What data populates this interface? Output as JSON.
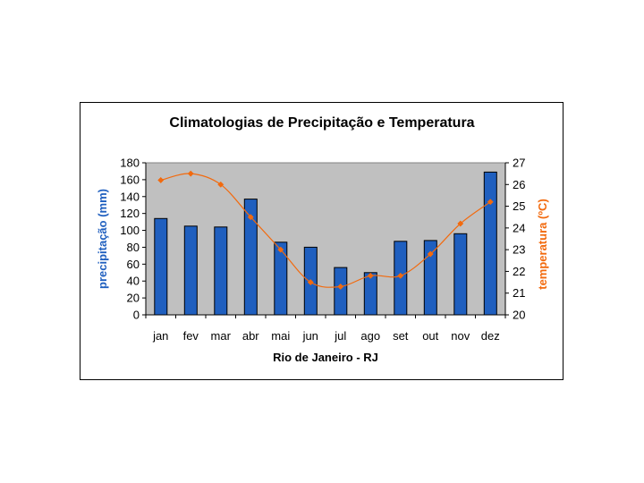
{
  "chart_data": {
    "type": "bar+line",
    "title": "Climatologias de Precipitação e Temperatura",
    "xlabel": "Rio de Janeiro - RJ",
    "categories": [
      "jan",
      "fev",
      "mar",
      "abr",
      "mai",
      "jun",
      "jul",
      "ago",
      "set",
      "out",
      "nov",
      "dez"
    ],
    "series": [
      {
        "name": "precipitação (mm)",
        "type": "bar",
        "axis": "left",
        "color": "#1f5fbf",
        "values": [
          114,
          105,
          104,
          137,
          86,
          80,
          56,
          50,
          87,
          88,
          96,
          169
        ]
      },
      {
        "name": "temperatura (ºC)",
        "type": "line",
        "axis": "right",
        "color": "#f26a0e",
        "values": [
          26.2,
          26.5,
          26.0,
          24.5,
          23.0,
          21.5,
          21.3,
          21.8,
          21.8,
          22.8,
          24.2,
          25.2
        ]
      }
    ],
    "ylabel": "precipitação (mm)",
    "ylim": [
      0,
      180
    ],
    "yticks": [
      0,
      20,
      40,
      60,
      80,
      100,
      120,
      140,
      160,
      180
    ],
    "y2label": "temperatura (ºC)",
    "y2lim": [
      20,
      27
    ],
    "y2ticks": [
      20,
      21,
      22,
      23,
      24,
      25,
      26,
      27
    ],
    "plot_background": "#c0c0c0",
    "ylabel_color": "#1f5fbf",
    "y2label_color": "#f26a0e",
    "grid": false,
    "legend": "none"
  }
}
